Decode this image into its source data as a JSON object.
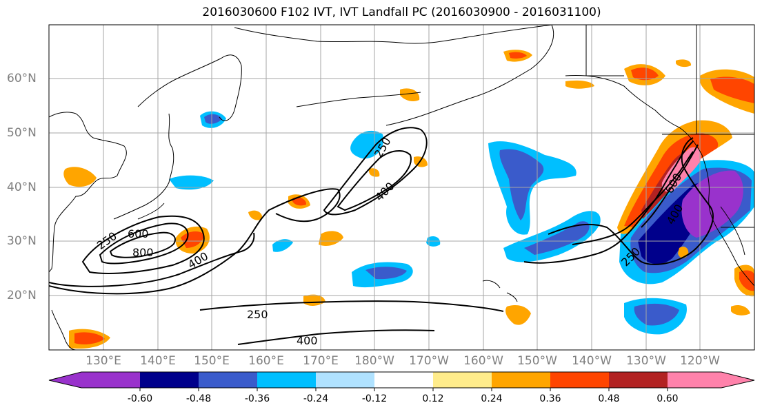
{
  "title": "2016030600 F102 IVT, IVT Landfall PC (2016030900 - 2016031100)",
  "latitude_labels": [
    "60°N",
    "50°N",
    "40°N",
    "30°N",
    "20°N"
  ],
  "longitude_labels": [
    "130°E",
    "140°E",
    "150°E",
    "160°E",
    "170°E",
    "180°W",
    "170°W",
    "160°W",
    "150°W",
    "140°W",
    "130°W",
    "120°W"
  ],
  "colorbar": {
    "colors": [
      "#9932cc",
      "#00008b",
      "#3a5bcb",
      "#00bfff",
      "#b0e2ff",
      "#ffffff",
      "#ffec8b",
      "#ffa500",
      "#ff4500",
      "#b22222",
      "#ff82ab"
    ],
    "tick_labels": [
      "-0.60",
      "-0.48",
      "-0.36",
      "-0.24",
      "-0.12",
      "0.12",
      "0.24",
      "0.36",
      "0.48",
      "0.60"
    ]
  },
  "ivt_contour_levels": [
    "250",
    "400",
    "600",
    "800"
  ],
  "contour_labels": [
    {
      "text": "250"
    },
    {
      "text": "600"
    },
    {
      "text": "800"
    },
    {
      "text": "400"
    },
    {
      "text": "250"
    },
    {
      "text": "400"
    },
    {
      "text": "250"
    },
    {
      "text": "400"
    },
    {
      "text": "600"
    },
    {
      "text": "400"
    },
    {
      "text": "250"
    }
  ]
}
